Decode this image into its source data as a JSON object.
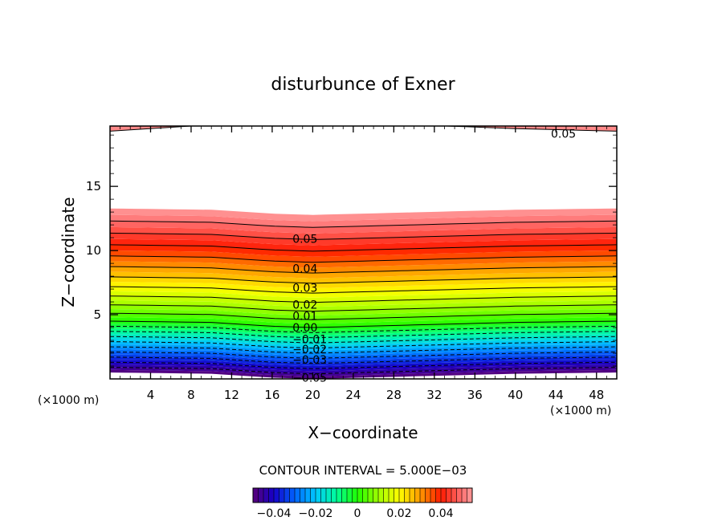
{
  "chart_data": {
    "type": "contour",
    "title": "disturbunce of Exner",
    "xlabel": "X−coordinate",
    "ylabel": "Z−coordinate",
    "x_unit_label": "(×1000 m)",
    "y_unit_label": "(×1000 m)",
    "xlim": [
      0,
      50
    ],
    "ylim": [
      0,
      19.7
    ],
    "x_ticks": [
      4,
      8,
      12,
      16,
      20,
      24,
      28,
      32,
      36,
      40,
      44,
      48
    ],
    "y_ticks": [
      5,
      10,
      15
    ],
    "contour_interval_text": "CONTOUR INTERVAL = 5.000E−03",
    "contour_interval": 0.005,
    "value_range": [
      -0.05,
      0.055
    ],
    "x_profile": [
      0,
      10,
      16,
      20,
      30,
      40,
      50
    ],
    "zero_level_height": [
      4.5,
      4.4,
      4.1,
      4.0,
      4.2,
      4.4,
      4.5
    ],
    "top_band": {
      "level": 0.05,
      "height": [
        19.3,
        19.8,
        19.8,
        19.9,
        19.8,
        19.5,
        19.3
      ]
    },
    "contour_labels": [
      {
        "text": "0.05",
        "x": 18,
        "z": 10.9
      },
      {
        "text": "0.04",
        "x": 18,
        "z": 8.6
      },
      {
        "text": "0.03",
        "x": 18,
        "z": 7.1
      },
      {
        "text": "0.02",
        "x": 18,
        "z": 5.8
      },
      {
        "text": "0.01",
        "x": 18,
        "z": 4.9
      },
      {
        "text": "0.00",
        "x": 18,
        "z": 4.0
      },
      {
        "text": "−0.01",
        "x": 18,
        "z": 3.1
      },
      {
        "text": "−0.02",
        "x": 18,
        "z": 2.3
      },
      {
        "text": "−0.03",
        "x": 18,
        "z": 1.5
      },
      {
        "text": "−0.05",
        "x": 18,
        "z": 0.1
      },
      {
        "text": "0.05",
        "x": 43.5,
        "z": 19.1
      }
    ],
    "colorbar": {
      "range": [
        -0.05,
        0.055
      ],
      "ticks": [
        {
          "value": -0.04,
          "label": "−0.04"
        },
        {
          "value": -0.02,
          "label": "−0.02"
        },
        {
          "value": 0,
          "label": "0"
        },
        {
          "value": 0.02,
          "label": "0.02"
        },
        {
          "value": 0.04,
          "label": "0.04"
        }
      ]
    },
    "colormap": [
      {
        "value": -0.05,
        "color": "#5a0078"
      },
      {
        "value": -0.04,
        "color": "#1400c8"
      },
      {
        "value": -0.03,
        "color": "#0064ff"
      },
      {
        "value": -0.02,
        "color": "#00c8ff"
      },
      {
        "value": -0.01,
        "color": "#00ff9a"
      },
      {
        "value": 0.0,
        "color": "#20ff00"
      },
      {
        "value": 0.01,
        "color": "#a0ff00"
      },
      {
        "value": 0.02,
        "color": "#ffff00"
      },
      {
        "value": 0.03,
        "color": "#ff9a00"
      },
      {
        "value": 0.04,
        "color": "#ff1a00"
      },
      {
        "value": 0.05,
        "color": "#ff7070"
      },
      {
        "value": 0.055,
        "color": "#ff9a9a"
      }
    ]
  }
}
